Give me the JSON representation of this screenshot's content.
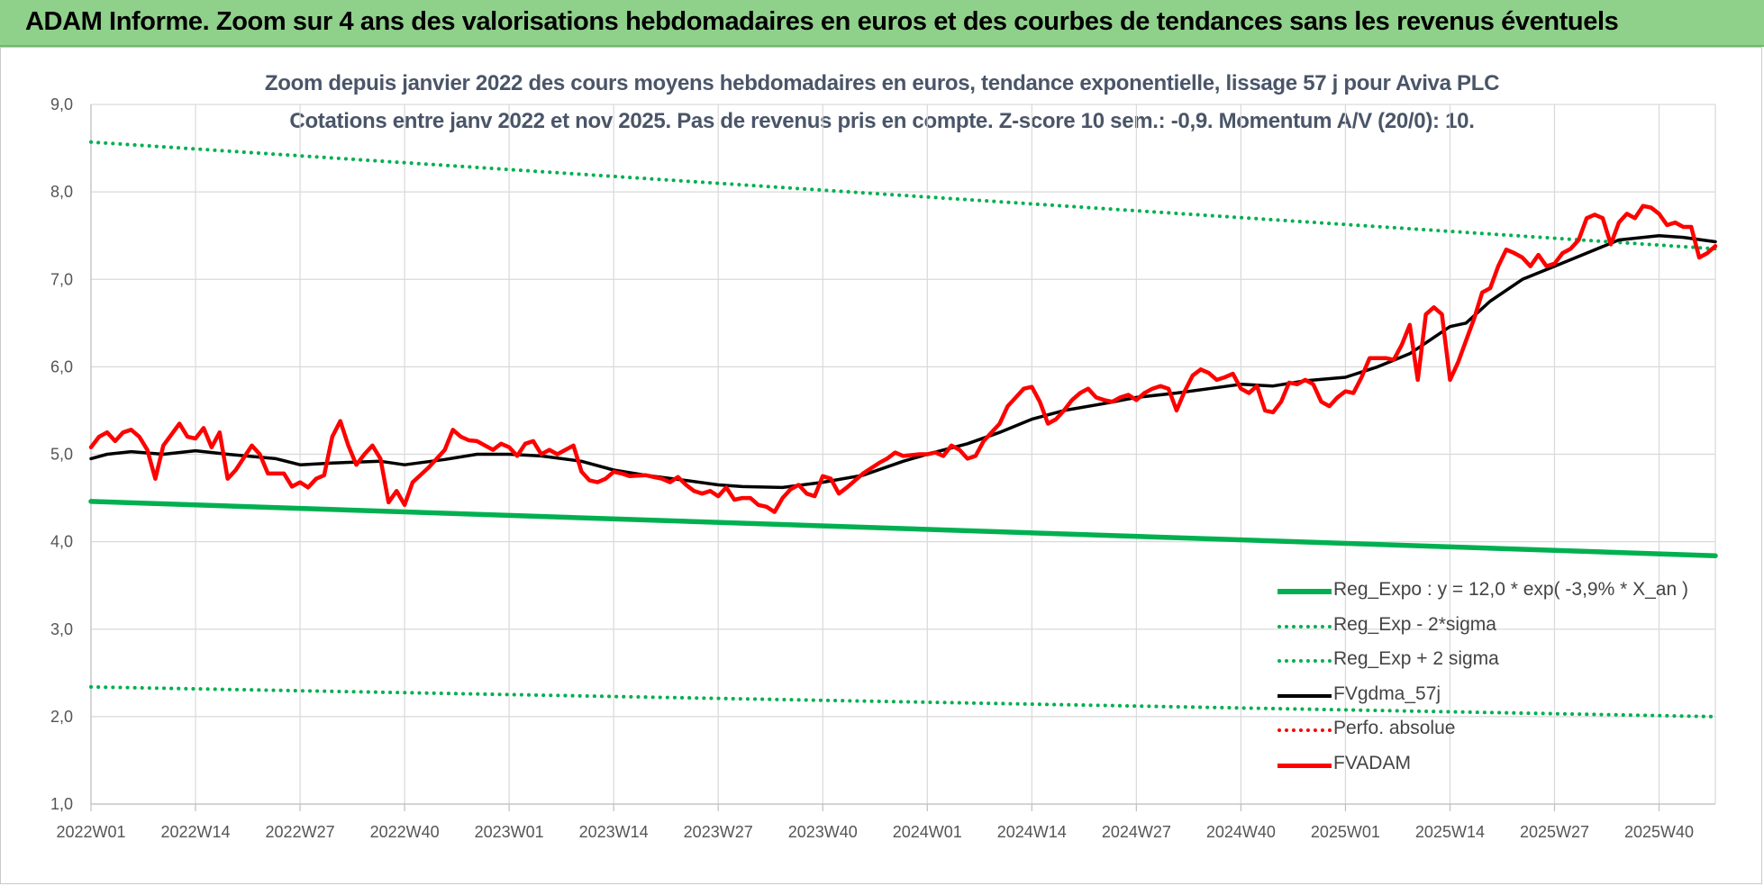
{
  "banner": {
    "title": "ADAM Informe. Zoom sur 4 ans des valorisations hebdomadaires en euros et des courbes de tendances sans les revenus éventuels"
  },
  "chart_data": {
    "type": "line",
    "title": "Zoom depuis janvier 2022 des cours moyens hebdomadaires en euros, tendance exponentielle, lissage 57 j pour Aviva PLC",
    "subtitle": "Cotations entre janv 2022 et nov 2025. Pas de revenus pris en compte. Z-score 10 sem.: -0,9. Momentum A/V (20/0): 10.",
    "xlabel": "",
    "ylabel": "",
    "ylim": [
      1.0,
      9.0
    ],
    "y_ticks": [
      "1,0",
      "2,0",
      "3,0",
      "4,0",
      "5,0",
      "6,0",
      "7,0",
      "8,0",
      "9,0"
    ],
    "x_ticks": [
      "2022W01",
      "2022W14",
      "2022W27",
      "2022W40",
      "2023W01",
      "2023W14",
      "2023W27",
      "2023W40",
      "2024W01",
      "2024W14",
      "2024W27",
      "2024W40",
      "2025W01",
      "2025W14",
      "2025W27",
      "2025W40"
    ],
    "x_start": "2022W01",
    "x_end": "2025W47",
    "grid": true,
    "legend_position": "bottom-right",
    "series": [
      {
        "name": "Reg_Expo : y = 12,0 * exp( -3,9% *  X_an )",
        "style": "solid",
        "color": "#00b050",
        "points": [
          [
            "2022W01",
            4.46
          ],
          [
            "2025W47",
            3.84
          ]
        ]
      },
      {
        "name": "Reg_Exp - 2*sigma",
        "style": "dotted",
        "color": "#00b050",
        "points": [
          [
            "2022W01",
            2.34
          ],
          [
            "2025W47",
            2.0
          ]
        ]
      },
      {
        "name": "Reg_Exp + 2 sigma",
        "style": "dotted",
        "color": "#00b050",
        "points": [
          [
            "2022W01",
            8.57
          ],
          [
            "2025W47",
            7.35
          ]
        ]
      },
      {
        "name": "FVgdma_57j",
        "style": "solid",
        "color": "#000000",
        "points": [
          [
            "2022W01",
            4.95
          ],
          [
            "2022W03",
            5.0
          ],
          [
            "2022W06",
            5.03
          ],
          [
            "2022W10",
            5.0
          ],
          [
            "2022W14",
            5.04
          ],
          [
            "2022W18",
            5.0
          ],
          [
            "2022W24",
            4.95
          ],
          [
            "2022W27",
            4.88
          ],
          [
            "2022W31",
            4.9
          ],
          [
            "2022W37",
            4.92
          ],
          [
            "2022W40",
            4.88
          ],
          [
            "2022W45",
            4.94
          ],
          [
            "2022W49",
            5.0
          ],
          [
            "2023W01",
            5.0
          ],
          [
            "2023W05",
            4.98
          ],
          [
            "2023W10",
            4.92
          ],
          [
            "2023W14",
            4.82
          ],
          [
            "2023W18",
            4.76
          ],
          [
            "2023W23",
            4.7
          ],
          [
            "2023W27",
            4.65
          ],
          [
            "2023W30",
            4.63
          ],
          [
            "2023W35",
            4.62
          ],
          [
            "2023W40",
            4.68
          ],
          [
            "2023W45",
            4.76
          ],
          [
            "2023W50",
            4.92
          ],
          [
            "2024W01",
            5.0
          ],
          [
            "2024W06",
            5.12
          ],
          [
            "2024W10",
            5.25
          ],
          [
            "2024W14",
            5.4
          ],
          [
            "2024W18",
            5.5
          ],
          [
            "2024W23",
            5.58
          ],
          [
            "2024W27",
            5.65
          ],
          [
            "2024W32",
            5.7
          ],
          [
            "2024W36",
            5.75
          ],
          [
            "2024W40",
            5.8
          ],
          [
            "2024W44",
            5.78
          ],
          [
            "2024W48",
            5.84
          ],
          [
            "2025W01",
            5.88
          ],
          [
            "2025W05",
            6.0
          ],
          [
            "2025W09",
            6.15
          ],
          [
            "2025W14",
            6.46
          ],
          [
            "2025W16",
            6.5
          ],
          [
            "2025W19",
            6.75
          ],
          [
            "2025W23",
            7.0
          ],
          [
            "2025W27",
            7.15
          ],
          [
            "2025W31",
            7.3
          ],
          [
            "2025W35",
            7.45
          ],
          [
            "2025W40",
            7.5
          ],
          [
            "2025W43",
            7.48
          ],
          [
            "2025W47",
            7.43
          ]
        ]
      },
      {
        "name": "Perfo. absolue",
        "style": "dotted",
        "color": "#ff0000",
        "points": []
      },
      {
        "name": "FVADAM",
        "style": "solid",
        "color": "#ff0000",
        "points": [
          [
            "2022W01",
            5.08
          ],
          [
            "2022W02",
            5.2
          ],
          [
            "2022W03",
            5.25
          ],
          [
            "2022W04",
            5.15
          ],
          [
            "2022W05",
            5.25
          ],
          [
            "2022W06",
            5.28
          ],
          [
            "2022W07",
            5.2
          ],
          [
            "2022W08",
            5.05
          ],
          [
            "2022W09",
            4.72
          ],
          [
            "2022W10",
            5.1
          ],
          [
            "2022W12",
            5.35
          ],
          [
            "2022W13",
            5.2
          ],
          [
            "2022W14",
            5.18
          ],
          [
            "2022W15",
            5.3
          ],
          [
            "2022W16",
            5.08
          ],
          [
            "2022W17",
            5.25
          ],
          [
            "2022W18",
            4.72
          ],
          [
            "2022W19",
            4.82
          ],
          [
            "2022W21",
            5.1
          ],
          [
            "2022W22",
            5.0
          ],
          [
            "2022W23",
            4.78
          ],
          [
            "2022W25",
            4.78
          ],
          [
            "2022W26",
            4.63
          ],
          [
            "2022W27",
            4.68
          ],
          [
            "2022W28",
            4.62
          ],
          [
            "2022W29",
            4.72
          ],
          [
            "2022W30",
            4.76
          ],
          [
            "2022W31",
            5.2
          ],
          [
            "2022W32",
            5.38
          ],
          [
            "2022W33",
            5.1
          ],
          [
            "2022W34",
            4.88
          ],
          [
            "2022W35",
            5.0
          ],
          [
            "2022W36",
            5.1
          ],
          [
            "2022W37",
            4.95
          ],
          [
            "2022W38",
            4.45
          ],
          [
            "2022W39",
            4.58
          ],
          [
            "2022W40",
            4.42
          ],
          [
            "2022W41",
            4.68
          ],
          [
            "2022W43",
            4.85
          ],
          [
            "2022W44",
            4.95
          ],
          [
            "2022W45",
            5.05
          ],
          [
            "2022W46",
            5.28
          ],
          [
            "2022W47",
            5.2
          ],
          [
            "2022W48",
            5.16
          ],
          [
            "2022W49",
            5.15
          ],
          [
            "2022W50",
            5.1
          ],
          [
            "2022W51",
            5.05
          ],
          [
            "2022W52",
            5.12
          ],
          [
            "2023W01",
            5.08
          ],
          [
            "2023W02",
            4.98
          ],
          [
            "2023W03",
            5.12
          ],
          [
            "2023W04",
            5.15
          ],
          [
            "2023W05",
            5.0
          ],
          [
            "2023W06",
            5.05
          ],
          [
            "2023W07",
            5.0
          ],
          [
            "2023W08",
            5.05
          ],
          [
            "2023W09",
            5.1
          ],
          [
            "2023W10",
            4.8
          ],
          [
            "2023W11",
            4.7
          ],
          [
            "2023W12",
            4.68
          ],
          [
            "2023W13",
            4.72
          ],
          [
            "2023W14",
            4.8
          ],
          [
            "2023W15",
            4.78
          ],
          [
            "2023W16",
            4.75
          ],
          [
            "2023W18",
            4.76
          ],
          [
            "2023W19",
            4.74
          ],
          [
            "2023W20",
            4.72
          ],
          [
            "2023W21",
            4.68
          ],
          [
            "2023W22",
            4.74
          ],
          [
            "2023W23",
            4.65
          ],
          [
            "2023W24",
            4.58
          ],
          [
            "2023W25",
            4.55
          ],
          [
            "2023W26",
            4.58
          ],
          [
            "2023W27",
            4.52
          ],
          [
            "2023W28",
            4.62
          ],
          [
            "2023W29",
            4.48
          ],
          [
            "2023W30",
            4.5
          ],
          [
            "2023W31",
            4.5
          ],
          [
            "2023W32",
            4.42
          ],
          [
            "2023W33",
            4.4
          ],
          [
            "2023W34",
            4.34
          ],
          [
            "2023W35",
            4.5
          ],
          [
            "2023W36",
            4.6
          ],
          [
            "2023W37",
            4.65
          ],
          [
            "2023W38",
            4.55
          ],
          [
            "2023W39",
            4.52
          ],
          [
            "2023W40",
            4.75
          ],
          [
            "2023W41",
            4.72
          ],
          [
            "2023W42",
            4.55
          ],
          [
            "2023W43",
            4.62
          ],
          [
            "2023W45",
            4.78
          ],
          [
            "2023W47",
            4.9
          ],
          [
            "2023W48",
            4.95
          ],
          [
            "2023W49",
            5.02
          ],
          [
            "2023W50",
            4.98
          ],
          [
            "2023W52",
            5.0
          ],
          [
            "2024W01",
            5.0
          ],
          [
            "2024W02",
            5.02
          ],
          [
            "2024W03",
            4.98
          ],
          [
            "2024W04",
            5.1
          ],
          [
            "2024W05",
            5.05
          ],
          [
            "2024W06",
            4.95
          ],
          [
            "2024W07",
            4.98
          ],
          [
            "2024W08",
            5.15
          ],
          [
            "2024W09",
            5.25
          ],
          [
            "2024W10",
            5.35
          ],
          [
            "2024W11",
            5.55
          ],
          [
            "2024W12",
            5.65
          ],
          [
            "2024W13",
            5.75
          ],
          [
            "2024W14",
            5.77
          ],
          [
            "2024W15",
            5.6
          ],
          [
            "2024W16",
            5.35
          ],
          [
            "2024W17",
            5.4
          ],
          [
            "2024W18",
            5.5
          ],
          [
            "2024W19",
            5.62
          ],
          [
            "2024W20",
            5.7
          ],
          [
            "2024W21",
            5.75
          ],
          [
            "2024W22",
            5.65
          ],
          [
            "2024W23",
            5.62
          ],
          [
            "2024W24",
            5.6
          ],
          [
            "2024W25",
            5.65
          ],
          [
            "2024W26",
            5.68
          ],
          [
            "2024W27",
            5.62
          ],
          [
            "2024W28",
            5.7
          ],
          [
            "2024W29",
            5.75
          ],
          [
            "2024W30",
            5.78
          ],
          [
            "2024W31",
            5.75
          ],
          [
            "2024W32",
            5.5
          ],
          [
            "2024W33",
            5.72
          ],
          [
            "2024W34",
            5.9
          ],
          [
            "2024W35",
            5.97
          ],
          [
            "2024W36",
            5.93
          ],
          [
            "2024W37",
            5.85
          ],
          [
            "2024W38",
            5.88
          ],
          [
            "2024W39",
            5.92
          ],
          [
            "2024W40",
            5.75
          ],
          [
            "2024W41",
            5.7
          ],
          [
            "2024W42",
            5.78
          ],
          [
            "2024W43",
            5.5
          ],
          [
            "2024W44",
            5.48
          ],
          [
            "2024W45",
            5.6
          ],
          [
            "2024W46",
            5.82
          ],
          [
            "2024W47",
            5.8
          ],
          [
            "2024W48",
            5.85
          ],
          [
            "2024W49",
            5.8
          ],
          [
            "2024W50",
            5.6
          ],
          [
            "2024W51",
            5.55
          ],
          [
            "2024W52",
            5.65
          ],
          [
            "2025W01",
            5.72
          ],
          [
            "2025W02",
            5.7
          ],
          [
            "2025W03",
            5.88
          ],
          [
            "2025W04",
            6.1
          ],
          [
            "2025W05",
            6.1
          ],
          [
            "2025W06",
            6.1
          ],
          [
            "2025W07",
            6.08
          ],
          [
            "2025W08",
            6.25
          ],
          [
            "2025W09",
            6.48
          ],
          [
            "2025W10",
            5.85
          ],
          [
            "2025W11",
            6.6
          ],
          [
            "2025W12",
            6.68
          ],
          [
            "2025W13",
            6.6
          ],
          [
            "2025W14",
            5.85
          ],
          [
            "2025W15",
            6.05
          ],
          [
            "2025W16",
            6.3
          ],
          [
            "2025W17",
            6.55
          ],
          [
            "2025W18",
            6.85
          ],
          [
            "2025W19",
            6.9
          ],
          [
            "2025W20",
            7.15
          ],
          [
            "2025W21",
            7.34
          ],
          [
            "2025W22",
            7.3
          ],
          [
            "2025W23",
            7.25
          ],
          [
            "2025W24",
            7.15
          ],
          [
            "2025W25",
            7.28
          ],
          [
            "2025W26",
            7.15
          ],
          [
            "2025W27",
            7.18
          ],
          [
            "2025W28",
            7.3
          ],
          [
            "2025W29",
            7.35
          ],
          [
            "2025W30",
            7.45
          ],
          [
            "2025W31",
            7.7
          ],
          [
            "2025W32",
            7.74
          ],
          [
            "2025W33",
            7.7
          ],
          [
            "2025W34",
            7.4
          ],
          [
            "2025W35",
            7.65
          ],
          [
            "2025W36",
            7.75
          ],
          [
            "2025W37",
            7.7
          ],
          [
            "2025W38",
            7.84
          ],
          [
            "2025W39",
            7.82
          ],
          [
            "2025W40",
            7.75
          ],
          [
            "2025W41",
            7.62
          ],
          [
            "2025W42",
            7.65
          ],
          [
            "2025W43",
            7.6
          ],
          [
            "2025W44",
            7.6
          ],
          [
            "2025W45",
            7.25
          ],
          [
            "2025W46",
            7.3
          ],
          [
            "2025W47",
            7.38
          ]
        ]
      }
    ]
  }
}
